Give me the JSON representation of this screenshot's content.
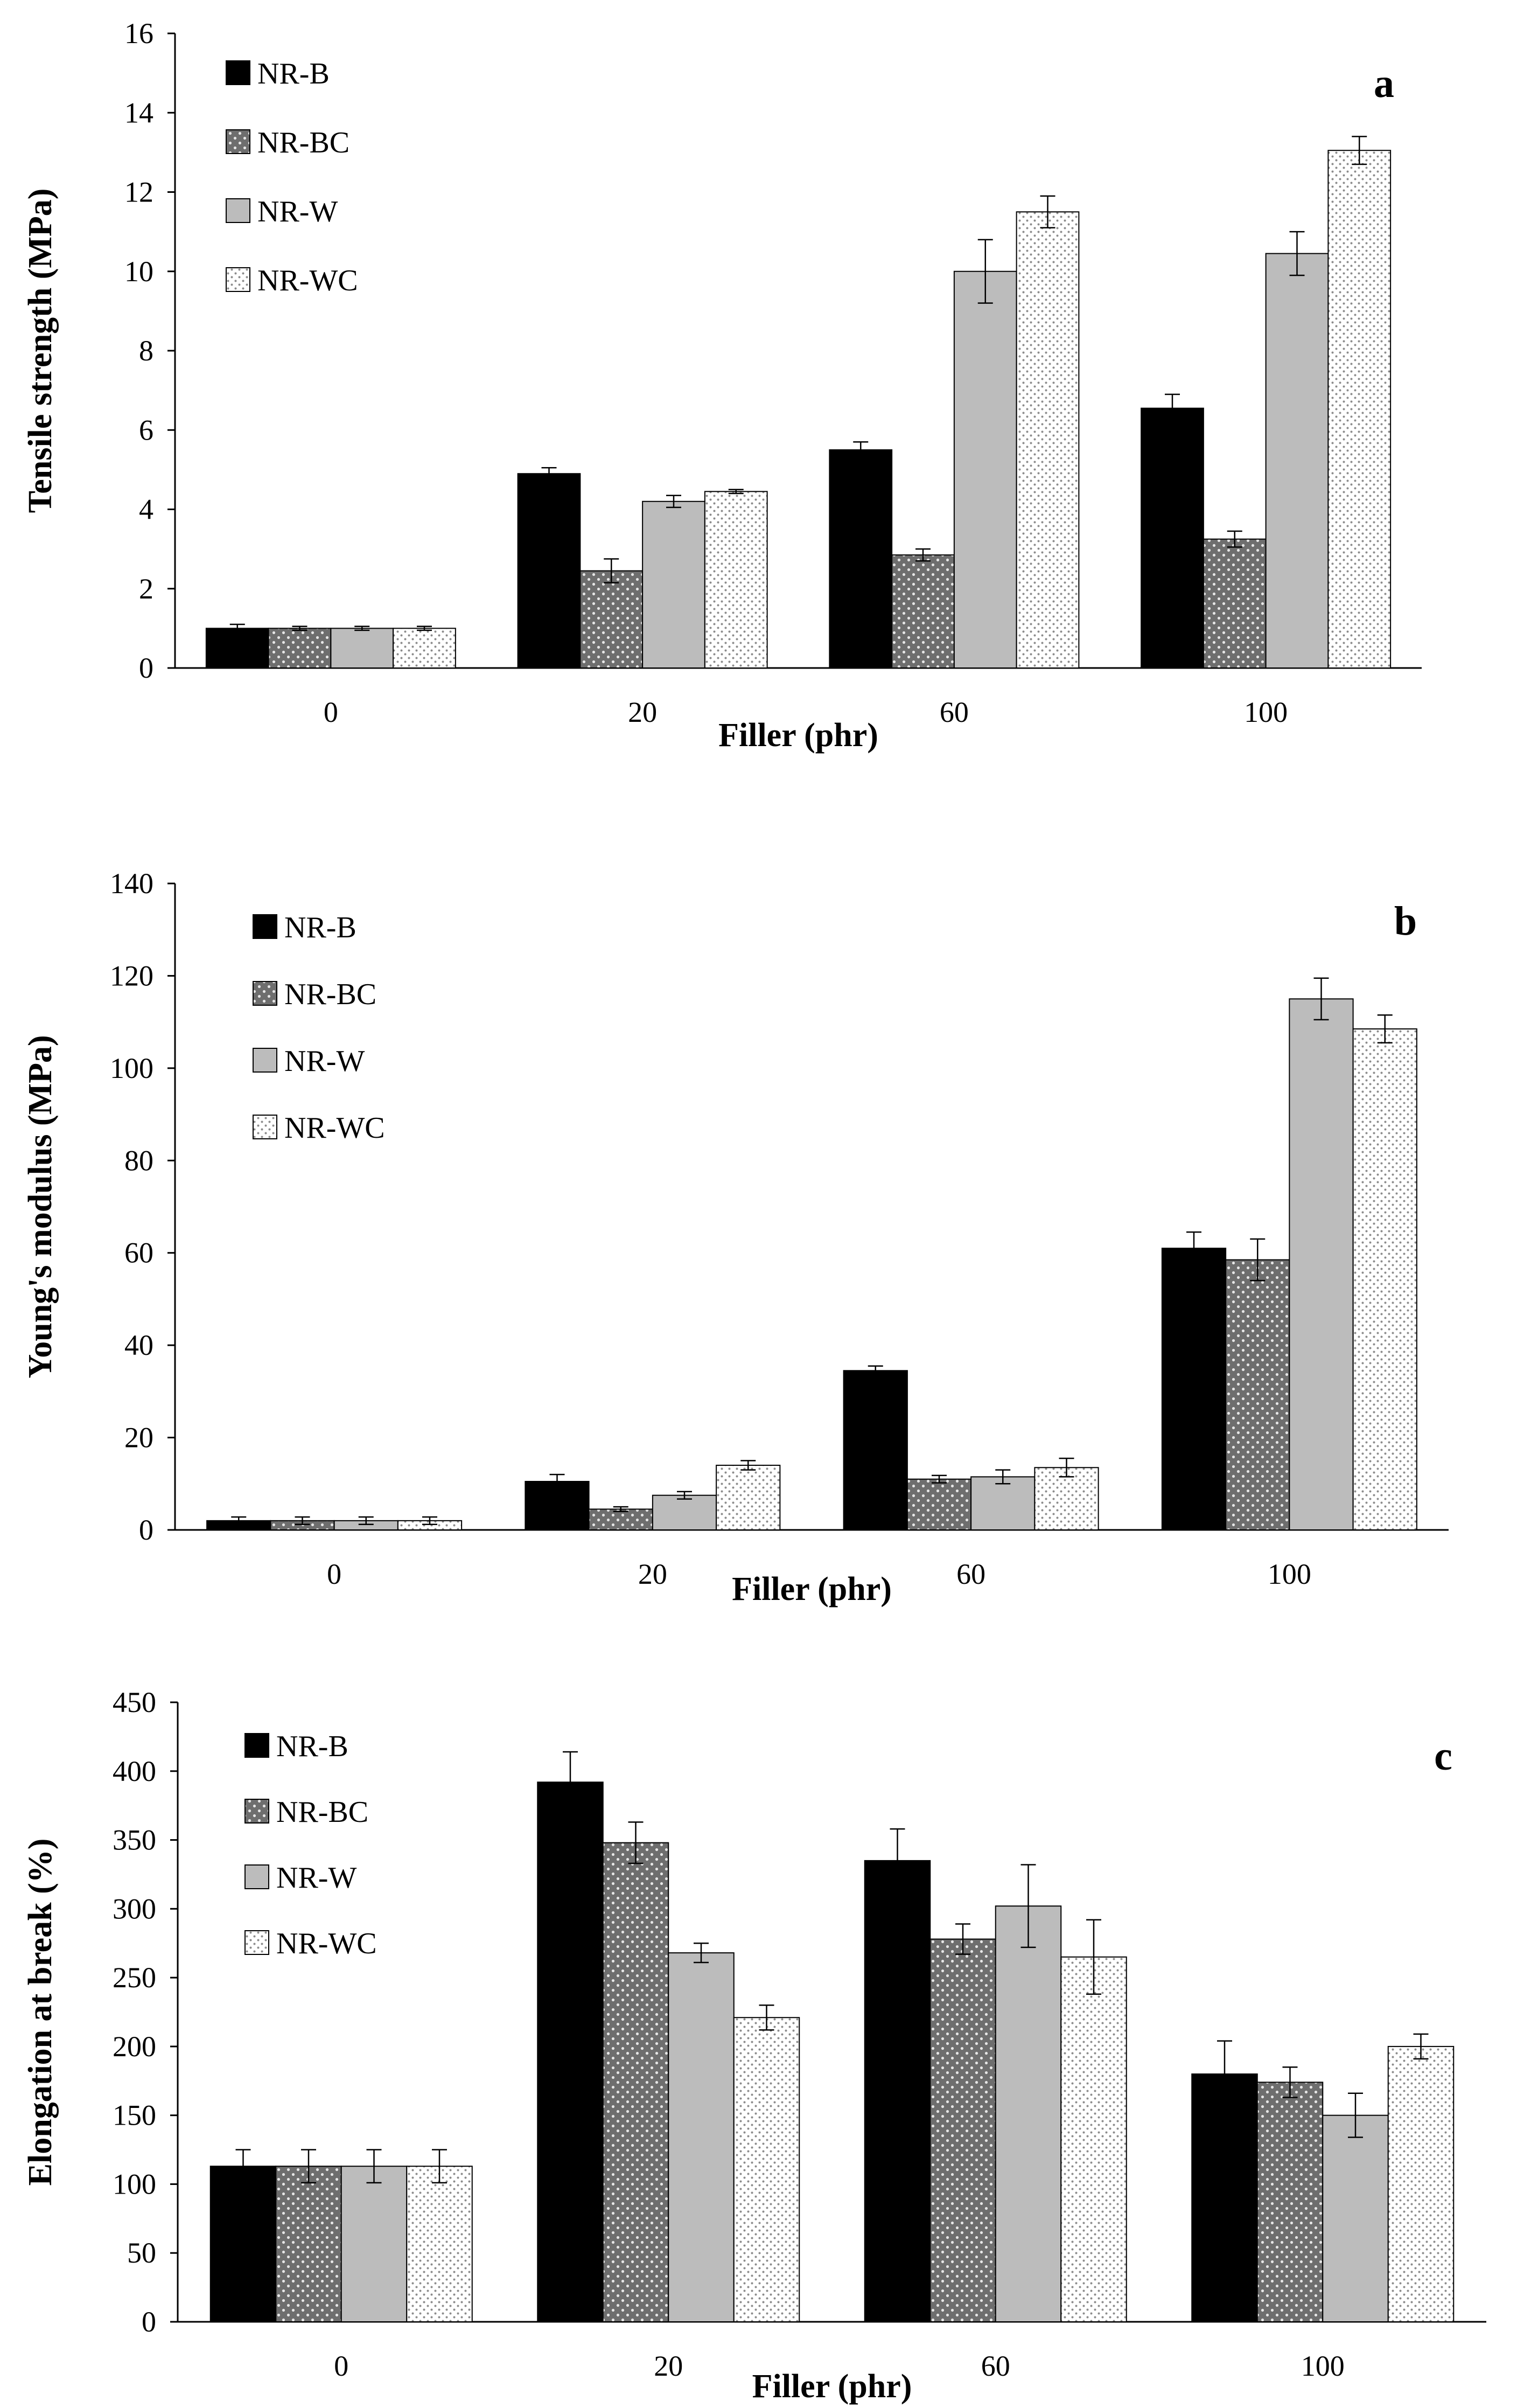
{
  "chart_data": [
    {
      "type": "bar",
      "panel_label": "a",
      "xlabel": "Filler (phr)",
      "ylabel": "Tensile strength (MPa)",
      "ylim": [
        0,
        16
      ],
      "yticks": [
        0,
        2,
        4,
        6,
        8,
        10,
        12,
        14,
        16
      ],
      "categories": [
        "0",
        "20",
        "60",
        "100"
      ],
      "legend_position": "top-left",
      "series": [
        {
          "name": "NR-B",
          "pattern": "solid-black",
          "values": [
            1.0,
            4.9,
            5.5,
            6.55
          ],
          "errors": [
            0.1,
            0.15,
            0.2,
            0.35
          ]
        },
        {
          "name": "NR-BC",
          "pattern": "dotted-dark",
          "values": [
            1.0,
            2.45,
            2.85,
            3.25
          ],
          "errors": [
            0.05,
            0.3,
            0.15,
            0.2
          ]
        },
        {
          "name": "NR-W",
          "pattern": "solid-gray",
          "values": [
            1.0,
            4.2,
            10.0,
            10.45
          ],
          "errors": [
            0.05,
            0.15,
            0.8,
            0.55
          ]
        },
        {
          "name": "NR-WC",
          "pattern": "dotted-light",
          "values": [
            1.0,
            4.45,
            11.5,
            13.05
          ],
          "errors": [
            0.05,
            0.05,
            0.4,
            0.35
          ]
        }
      ]
    },
    {
      "type": "bar",
      "panel_label": "b",
      "xlabel": "Filler (phr)",
      "ylabel": "Young's modulus (MPa)",
      "ylim": [
        0,
        140
      ],
      "yticks": [
        0,
        20,
        40,
        60,
        80,
        100,
        120,
        140
      ],
      "categories": [
        "0",
        "20",
        "60",
        "100"
      ],
      "legend_position": "top-left",
      "series": [
        {
          "name": "NR-B",
          "pattern": "solid-black",
          "values": [
            2.0,
            10.5,
            34.5,
            61.0
          ],
          "errors": [
            0.8,
            1.5,
            1.0,
            3.5
          ]
        },
        {
          "name": "NR-BC",
          "pattern": "dotted-dark",
          "values": [
            2.0,
            4.5,
            11.0,
            58.5
          ],
          "errors": [
            0.8,
            0.5,
            0.8,
            4.5
          ]
        },
        {
          "name": "NR-W",
          "pattern": "solid-gray",
          "values": [
            2.0,
            7.5,
            11.5,
            115.0
          ],
          "errors": [
            0.8,
            0.8,
            1.5,
            4.5
          ]
        },
        {
          "name": "NR-WC",
          "pattern": "dotted-light",
          "values": [
            2.0,
            14.0,
            13.5,
            108.5
          ],
          "errors": [
            0.8,
            1.0,
            2.0,
            3.0
          ]
        }
      ]
    },
    {
      "type": "bar",
      "panel_label": "c",
      "xlabel": "Filler (phr)",
      "ylabel": "Elongation at break (%)",
      "ylim": [
        0,
        450
      ],
      "yticks": [
        0,
        50,
        100,
        150,
        200,
        250,
        300,
        350,
        400,
        450
      ],
      "categories": [
        "0",
        "20",
        "60",
        "100"
      ],
      "legend_position": "top-left",
      "series": [
        {
          "name": "NR-B",
          "pattern": "solid-black",
          "values": [
            113,
            392,
            335,
            180
          ],
          "errors": [
            12,
            22,
            23,
            24
          ]
        },
        {
          "name": "NR-BC",
          "pattern": "dotted-dark",
          "values": [
            113,
            348,
            278,
            174
          ],
          "errors": [
            12,
            15,
            11,
            11
          ]
        },
        {
          "name": "NR-W",
          "pattern": "solid-gray",
          "values": [
            113,
            268,
            302,
            150
          ],
          "errors": [
            12,
            7,
            30,
            16
          ]
        },
        {
          "name": "NR-WC",
          "pattern": "dotted-light",
          "values": [
            113,
            221,
            265,
            200
          ],
          "errors": [
            12,
            9,
            27,
            9
          ]
        }
      ]
    }
  ]
}
